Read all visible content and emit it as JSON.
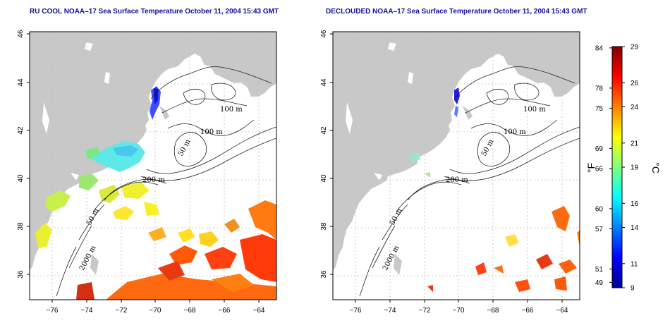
{
  "left_map": {
    "title": "RU COOL NOAA–17 Sea Surface Temperature October 11, 2004 15:43 GMT"
  },
  "right_map": {
    "title": "DECLOUDED NOAA–17 Sea Surface Temperature October 11, 2004 15:43 GMT"
  },
  "axes": {
    "x_ticks": [
      "−76",
      "−74",
      "−72",
      "−70",
      "−68",
      "−66",
      "−64"
    ],
    "y_ticks": [
      "46",
      "44",
      "42",
      "40",
      "38",
      "36"
    ]
  },
  "contour_labels": {
    "m100a": "100 m",
    "m100b": "100 m",
    "m50a": "50 m",
    "m200": "200 m",
    "m50b": "50 m",
    "m2000": "2000 m"
  },
  "colorbar": {
    "fahrenheit_ticks": [
      "84",
      "78",
      "75",
      "69",
      "66",
      "60",
      "57",
      "51",
      "49"
    ],
    "celsius_ticks": [
      "29",
      "26",
      "24",
      "21",
      "19",
      "16",
      "14",
      "11",
      "9"
    ],
    "fahrenheit_unit": "°F",
    "celsius_unit": "°C",
    "celsius_range": [
      9,
      29
    ],
    "colormap": "jet (blue → cyan → yellow → red)"
  },
  "colors": {
    "land": "#c8c8c8",
    "ocean": "#ffffff",
    "grid": "#bdbdbd",
    "title": "#1010a0",
    "cold": "#0000a0",
    "warm": "#800000"
  }
}
